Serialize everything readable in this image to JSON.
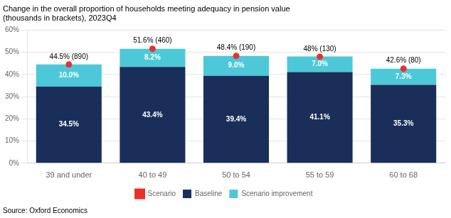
{
  "chart_data": {
    "type": "bar",
    "title": "Change in the overall proportion of households meeting adequacy in pension value\n(thousands in brackets), 2023Q4",
    "annotation": "Source: Oxford Economics",
    "categories": [
      "39 and under",
      "40 to 49",
      "50 to 54",
      "55 to 59",
      "60 to 68"
    ],
    "series": [
      {
        "name": "Baseline",
        "type": "bar",
        "color": "#1a2e5a",
        "values": [
          34.5,
          43.4,
          39.4,
          41.1,
          35.3
        ],
        "value_labels": [
          "34.5%",
          "43.4%",
          "39.4%",
          "41.1%",
          "35.3%"
        ]
      },
      {
        "name": "Scenario improvement",
        "type": "bar",
        "color": "#4dc8d8",
        "values": [
          10.0,
          8.2,
          9.0,
          7.0,
          7.3
        ],
        "value_labels": [
          "10.0%",
          "8.2%",
          "9.0%",
          "7.0%",
          "7.3%"
        ]
      },
      {
        "name": "Scenario",
        "type": "line",
        "marker": "circle",
        "line_style": "none",
        "color": "#e8312a",
        "values": [
          44.5,
          51.6,
          48.4,
          48.0,
          42.6
        ],
        "value_labels": [
          "44.5% (890)",
          "51.6% (460)",
          "48.4% (190)",
          "48% (130)",
          "42.6% (80)"
        ]
      }
    ],
    "stacked": true,
    "data_labels": true,
    "grid": true,
    "legend": "bottom",
    "ylim": [
      0,
      60
    ],
    "yticks": [
      {
        "value": 0,
        "label": "0%"
      },
      {
        "value": 10,
        "label": "10%"
      },
      {
        "value": 20,
        "label": "20%"
      },
      {
        "value": 30,
        "label": "30%"
      },
      {
        "value": 40,
        "label": "40%"
      },
      {
        "value": 50,
        "label": "50%"
      },
      {
        "value": 60,
        "label": "60%"
      }
    ]
  }
}
